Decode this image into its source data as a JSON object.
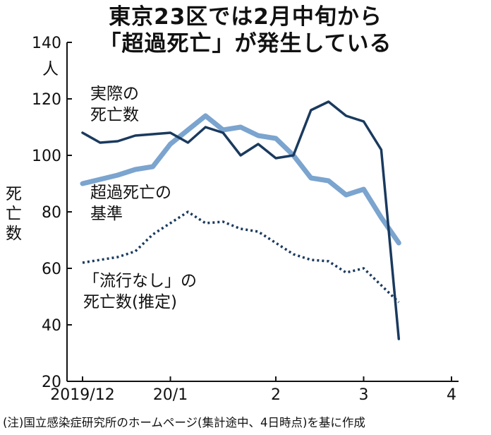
{
  "chart_data": {
    "type": "line",
    "title": "東京23区では2月中旬から",
    "subtitle": "「超過死亡」が発生している",
    "yunit": "人",
    "ylabel": "死亡数",
    "ylim": [
      20,
      140
    ],
    "yticks": [
      20,
      40,
      60,
      80,
      100,
      120,
      140
    ],
    "xlim": [
      0,
      21
    ],
    "xticks": [
      {
        "label": "2019/12",
        "x": 0
      },
      {
        "label": "20/1",
        "x": 5
      },
      {
        "label": "2",
        "x": 11
      },
      {
        "label": "3",
        "x": 16
      },
      {
        "label": "4",
        "x": 21
      }
    ],
    "series": [
      {
        "name": "実際の死亡数",
        "label_lines": [
          "実際の",
          "死亡数"
        ],
        "color": "#1a3a5e",
        "style": "solid",
        "x": [
          0,
          1,
          2,
          3,
          4,
          5,
          6,
          7,
          8,
          9,
          10,
          11,
          12,
          13,
          14,
          15,
          16,
          17,
          18,
          19,
          20,
          21
        ],
        "y": [
          108,
          104.5,
          105,
          107,
          107.5,
          108,
          104.5,
          110,
          108,
          100,
          104,
          99,
          100,
          116,
          119,
          114,
          112,
          102,
          35,
          null,
          null,
          null
        ]
      },
      {
        "name": "超過死亡の基準",
        "label_lines": [
          "超過死亡の",
          "基準"
        ],
        "color": "#7ba4cf",
        "style": "thick",
        "x": [
          0,
          1,
          2,
          3,
          4,
          5,
          6,
          7,
          8,
          9,
          10,
          11,
          12,
          13,
          14,
          15,
          16,
          17,
          18,
          19,
          20,
          21
        ],
        "y": [
          90,
          91.5,
          93,
          95,
          96,
          104,
          109,
          114,
          109,
          110,
          107,
          106,
          100,
          92,
          91,
          86,
          88,
          78,
          69,
          null,
          null,
          null
        ]
      },
      {
        "name": "「流行なし」の死亡数(推定)",
        "label_lines": [
          "「流行なし」の",
          "死亡数(推定)"
        ],
        "color": "#1a3a5e",
        "style": "dotted",
        "x": [
          0,
          1,
          2,
          3,
          4,
          5,
          6,
          7,
          8,
          9,
          10,
          11,
          12,
          13,
          14,
          15,
          16,
          17,
          18,
          19,
          20,
          21
        ],
        "y": [
          62,
          63,
          64,
          66,
          72,
          76,
          80,
          76,
          76.5,
          74,
          73,
          69,
          65,
          63,
          62.5,
          58.5,
          60,
          54,
          48,
          null,
          null,
          null
        ]
      }
    ],
    "note": "(注)国立感染症研究所のホームページ(集計途中、4日時点)を基に作成"
  }
}
